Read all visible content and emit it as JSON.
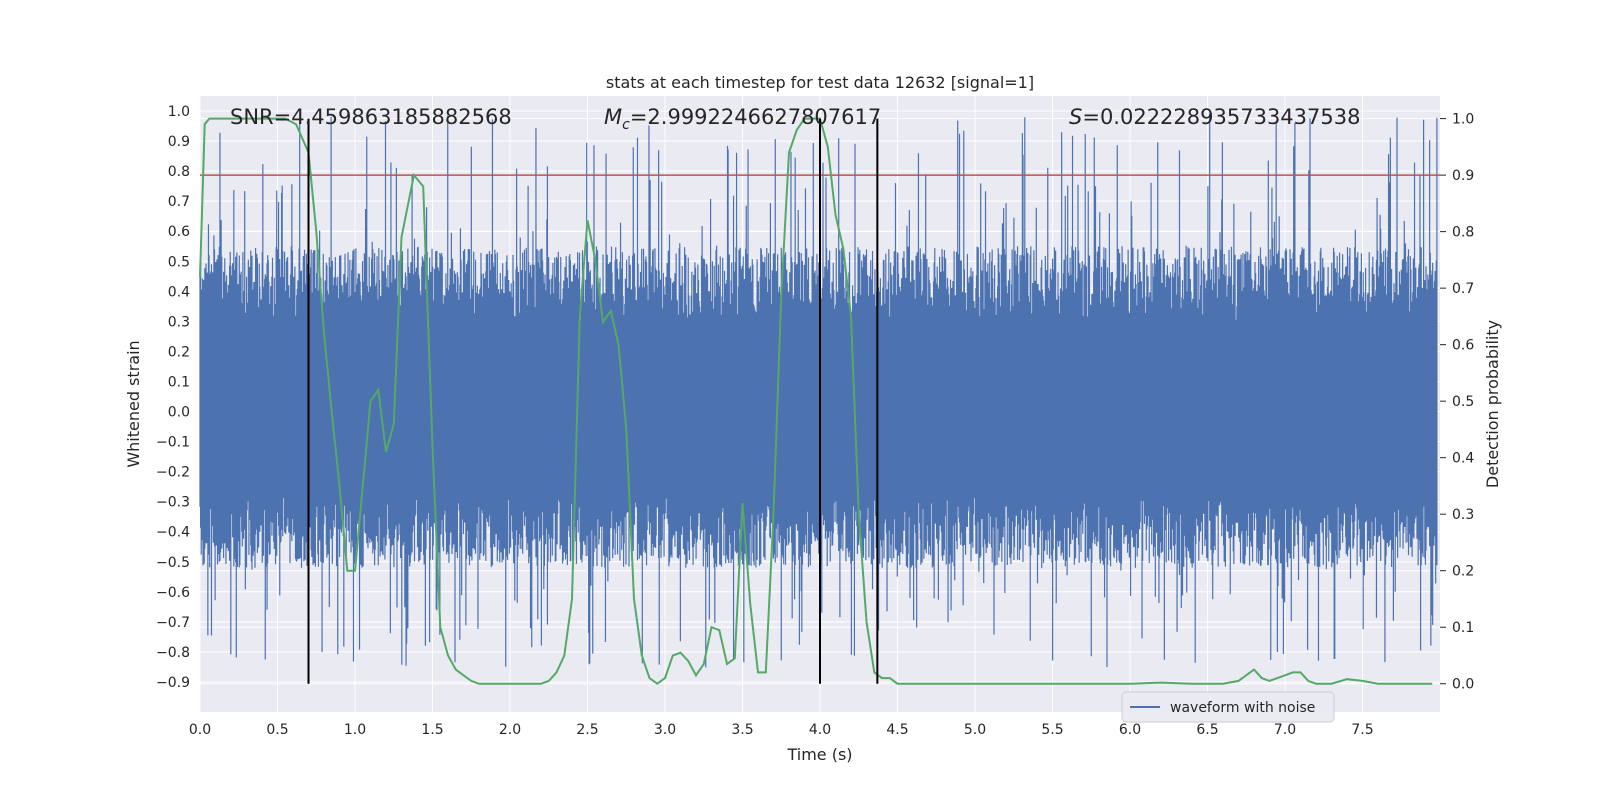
{
  "chart_data": {
    "type": "line",
    "title": "stats at each timestep for test data 12632 [signal=1]",
    "xlabel": "Time (s)",
    "ylabel": "Whitened strain",
    "y2label": "Detection probability",
    "xlim": [
      0.0,
      8.0
    ],
    "ylim": [
      -1.0,
      1.05
    ],
    "y2lim": [
      -0.05,
      1.04
    ],
    "x_ticks": [
      0.0,
      0.5,
      1.0,
      1.5,
      2.0,
      2.5,
      3.0,
      3.5,
      4.0,
      4.5,
      5.0,
      5.5,
      6.0,
      6.5,
      7.0,
      7.5
    ],
    "x_tick_labels": [
      "0.0",
      "0.5",
      "1.0",
      "1.5",
      "2.0",
      "2.5",
      "3.0",
      "3.5",
      "4.0",
      "4.5",
      "5.0",
      "5.5",
      "6.0",
      "6.5",
      "7.0",
      "7.5"
    ],
    "y_ticks": [
      1.0,
      0.9,
      0.8,
      0.7,
      0.6,
      0.5,
      0.4,
      0.3,
      0.2,
      0.1,
      0.0,
      -0.1,
      -0.2,
      -0.3,
      -0.4,
      -0.5,
      -0.6,
      -0.7,
      -0.8,
      -0.9
    ],
    "y_tick_labels": [
      "1.0",
      "0.9",
      "0.8",
      "0.7",
      "0.6",
      "0.5",
      "0.4",
      "0.3",
      "0.2",
      "0.1",
      "0.0",
      "−0.1",
      "−0.2",
      "−0.3",
      "−0.4",
      "−0.5",
      "−0.6",
      "−0.7",
      "−0.8",
      "−0.9"
    ],
    "y2_ticks": [
      1.0,
      0.9,
      0.8,
      0.7,
      0.6,
      0.5,
      0.4,
      0.3,
      0.2,
      0.1,
      0.0
    ],
    "y2_tick_labels": [
      "1.0",
      "0.9",
      "0.8",
      "0.7",
      "0.6",
      "0.5",
      "0.4",
      "0.3",
      "0.2",
      "0.1",
      "0.0"
    ],
    "annotations": {
      "snr": "SNR=4.459863185882568",
      "mc_symbol": "M",
      "mc_sub": "c",
      "mc_value": "=2.9992246627807617",
      "s_symbol": "S",
      "s_value": "=0.022228935733437538"
    },
    "threshold": {
      "axis": "y2",
      "value": 0.9,
      "color": "#c44e52"
    },
    "vlines": [
      0.7,
      4.0,
      4.37
    ],
    "legend": {
      "entries": [
        "waveform with noise"
      ],
      "placement": "lower-right"
    },
    "series": [
      {
        "name": "waveform with noise",
        "axis": "y",
        "color": "#4c72b0",
        "n_samples": 2048,
        "noise_envelope": [
          -0.52,
          0.55
        ],
        "peak_range": [
          -0.86,
          0.99
        ]
      },
      {
        "name": "detection probability",
        "axis": "y2",
        "color": "#55a868",
        "x": [
          0.0,
          0.03,
          0.06,
          0.1,
          0.15,
          0.2,
          0.3,
          0.4,
          0.5,
          0.55,
          0.62,
          0.7,
          0.75,
          0.8,
          0.85,
          0.9,
          0.95,
          1.0,
          1.05,
          1.1,
          1.15,
          1.2,
          1.25,
          1.3,
          1.38,
          1.44,
          1.5,
          1.55,
          1.6,
          1.65,
          1.7,
          1.75,
          1.8,
          1.9,
          2.0,
          2.1,
          2.2,
          2.25,
          2.3,
          2.35,
          2.4,
          2.45,
          2.5,
          2.55,
          2.6,
          2.65,
          2.7,
          2.75,
          2.8,
          2.85,
          2.9,
          2.95,
          3.0,
          3.05,
          3.1,
          3.15,
          3.2,
          3.25,
          3.3,
          3.35,
          3.4,
          3.45,
          3.5,
          3.55,
          3.6,
          3.65,
          3.7,
          3.75,
          3.8,
          3.85,
          3.9,
          3.95,
          4.0,
          4.05,
          4.1,
          4.15,
          4.2,
          4.25,
          4.3,
          4.35,
          4.4,
          4.45,
          4.5,
          4.55,
          4.6,
          4.65,
          4.7,
          4.75,
          4.8,
          5.0,
          5.5,
          6.0,
          6.2,
          6.4,
          6.6,
          6.7,
          6.8,
          6.85,
          6.9,
          7.0,
          7.05,
          7.1,
          7.15,
          7.2,
          7.3,
          7.4,
          7.5,
          7.6,
          7.8,
          7.95
        ],
        "y": [
          0.72,
          0.99,
          1.0,
          1.0,
          1.0,
          1.0,
          1.0,
          1.0,
          1.0,
          1.0,
          0.99,
          0.94,
          0.8,
          0.62,
          0.48,
          0.35,
          0.2,
          0.2,
          0.35,
          0.5,
          0.52,
          0.41,
          0.46,
          0.79,
          0.9,
          0.88,
          0.42,
          0.1,
          0.05,
          0.025,
          0.015,
          0.005,
          0.0,
          0.0,
          0.0,
          0.0,
          0.0,
          0.005,
          0.02,
          0.05,
          0.15,
          0.65,
          0.82,
          0.75,
          0.64,
          0.66,
          0.6,
          0.45,
          0.15,
          0.05,
          0.01,
          0.0,
          0.01,
          0.05,
          0.055,
          0.04,
          0.015,
          0.035,
          0.1,
          0.095,
          0.035,
          0.045,
          0.32,
          0.14,
          0.02,
          0.02,
          0.3,
          0.69,
          0.94,
          0.98,
          1.0,
          1.0,
          1.0,
          0.95,
          0.83,
          0.77,
          0.65,
          0.3,
          0.11,
          0.02,
          0.01,
          0.01,
          0.0,
          0.0,
          0.0,
          0.0,
          0.0,
          0.0,
          0.0,
          0.0,
          0.0,
          0.0,
          0.002,
          0.0,
          0.0,
          0.005,
          0.025,
          0.01,
          0.005,
          0.015,
          0.02,
          0.02,
          0.005,
          0.0,
          0.0,
          0.008,
          0.005,
          0.0,
          0.0,
          0.0
        ]
      }
    ]
  }
}
